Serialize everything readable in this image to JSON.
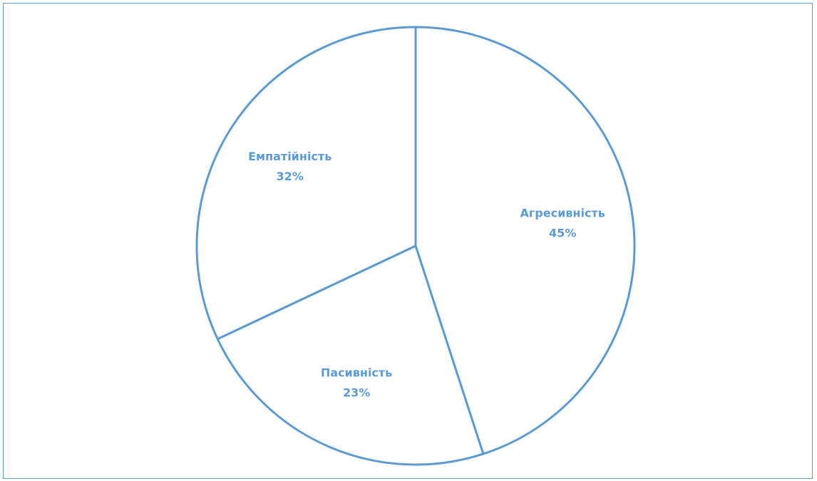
{
  "chart_data": {
    "type": "pie",
    "title": "",
    "start_angle_deg": 0,
    "direction": "clockwise",
    "style": {
      "outline_color": "#5b9bd5",
      "fill_color": "#ffffff",
      "label_color": "#5b9bd5"
    },
    "slices": [
      {
        "label": "Агресивність",
        "value": 45,
        "value_label": "45%"
      },
      {
        "label": "Пасивність",
        "value": 23,
        "value_label": "23%"
      },
      {
        "label": "Емпатійність",
        "value": 32,
        "value_label": "32%"
      }
    ]
  }
}
